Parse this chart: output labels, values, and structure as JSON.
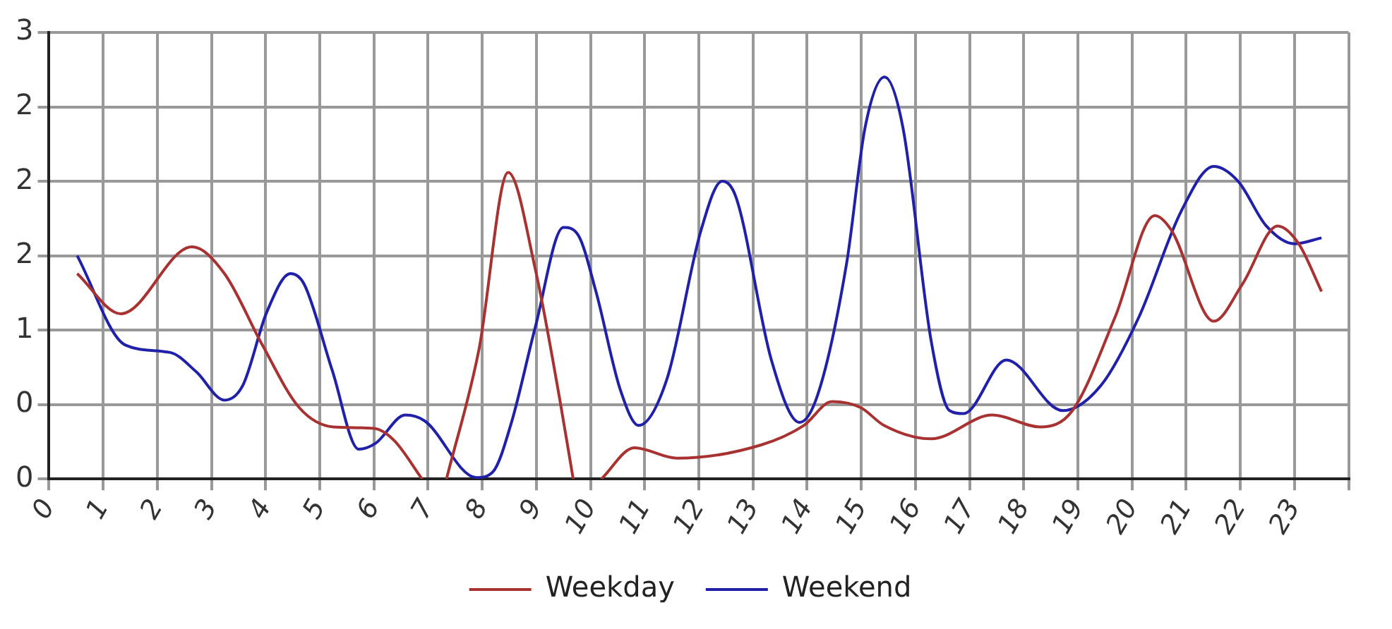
{
  "chart_data": {
    "type": "line",
    "legend": "bottom",
    "grid": true,
    "line_style": "solid",
    "marker": "none",
    "xlim": [
      0,
      24
    ],
    "xticks": [
      0,
      1,
      2,
      3,
      4,
      5,
      6,
      7,
      8,
      9,
      10,
      11,
      12,
      13,
      14,
      15,
      16,
      17,
      18,
      19,
      20,
      21,
      22,
      23,
      {
        "value": 24,
        "label": null
      }
    ],
    "ylim": [
      0,
      3
    ],
    "yticks": [
      0,
      {
        "value": 0.5,
        "label": "0"
      },
      1,
      {
        "value": 1.5,
        "label": "2"
      },
      2,
      {
        "value": 2.5,
        "label": "2"
      },
      3
    ],
    "series": [
      {
        "name": "Weekday",
        "color": "#a83232",
        "x": [
          0.52,
          1.33,
          2.64,
          3.24,
          3.94,
          4.62,
          5.25,
          6.0,
          6.37,
          6.89,
          7.1,
          7.34,
          7.94,
          8.48,
          8.98,
          9.43,
          9.68,
          9.95,
          10.2,
          10.81,
          11.6,
          13.16,
          13.94,
          14.46,
          14.99,
          15.42,
          16.29,
          17.42,
          18.3,
          18.9,
          19.69,
          20.42,
          20.73,
          21.51,
          22.04,
          22.69,
          23.08,
          23.5
        ],
        "values": [
          1.38,
          1.11,
          1.56,
          1.38,
          0.9,
          0.48,
          0.35,
          0.34,
          0.26,
          0,
          null,
          0,
          0.87,
          2.06,
          1.41,
          0.54,
          0,
          null,
          0,
          0.21,
          0.14,
          0.23,
          0.36,
          0.52,
          0.48,
          0.36,
          0.27,
          0.43,
          0.35,
          0.46,
          1.09,
          1.77,
          1.67,
          1.06,
          1.31,
          1.7,
          1.58,
          1.26
        ]
      },
      {
        "name": "Weekend",
        "color": "#2020a8",
        "x": [
          0.52,
          1.41,
          2.24,
          2.72,
          3.24,
          3.58,
          4.02,
          4.46,
          4.71,
          5.23,
          5.72,
          6.03,
          6.58,
          6.94,
          7.89,
          8.2,
          8.54,
          8.98,
          9.5,
          9.77,
          10.1,
          10.55,
          10.89,
          11.41,
          12.04,
          12.43,
          12.69,
          13.34,
          13.86,
          14.2,
          14.73,
          15.07,
          15.43,
          15.77,
          16.29,
          16.63,
          16.89,
          17.68,
          18.72,
          19.43,
          20.13,
          20.91,
          21.51,
          21.96,
          22.48,
          23.0,
          23.5
        ],
        "values": [
          1.5,
          0.9,
          0.85,
          0.72,
          0.53,
          0.63,
          1.12,
          1.38,
          1.31,
          0.73,
          0.2,
          0.24,
          0.43,
          0.39,
          0.01,
          0.05,
          0.38,
          1.02,
          1.69,
          1.64,
          1.26,
          0.6,
          0.36,
          0.67,
          1.67,
          2.0,
          1.89,
          0.8,
          0.38,
          0.57,
          1.45,
          2.36,
          2.7,
          2.36,
          0.93,
          0.46,
          0.44,
          0.8,
          0.46,
          0.63,
          1.09,
          1.8,
          2.1,
          2.0,
          1.7,
          1.58,
          1.62
        ]
      }
    ]
  }
}
